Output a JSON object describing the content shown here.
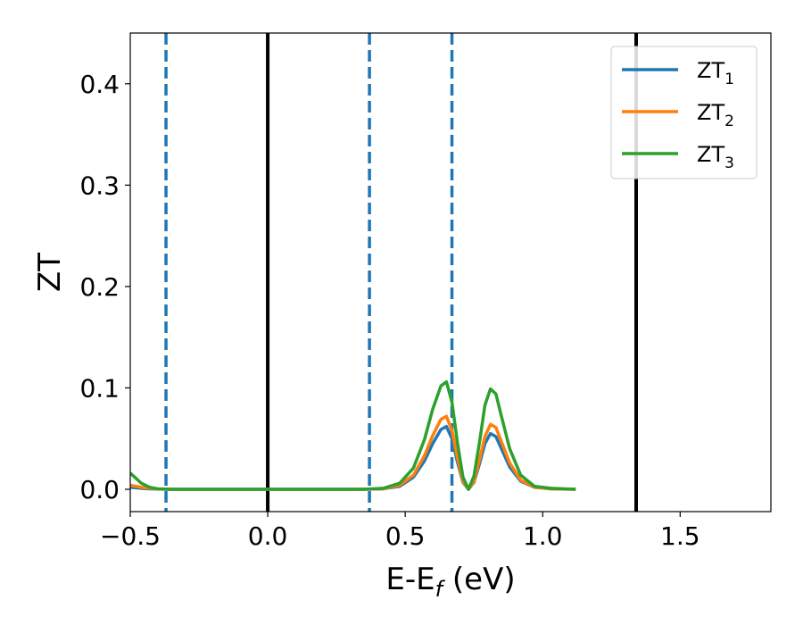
{
  "chart_data": {
    "type": "line",
    "title": "",
    "xlabel": "E-E",
    "xlabel_sub": "f",
    "xlabel_unit": " (eV)",
    "ylabel": "ZT",
    "xlim": [
      -0.5,
      1.83
    ],
    "ylim": [
      -0.022,
      0.45
    ],
    "xticks": [
      -0.5,
      0.0,
      0.5,
      1.0,
      1.5
    ],
    "xtick_labels": [
      "−0.5",
      "0.0",
      "0.5",
      "1.0",
      "1.5"
    ],
    "yticks": [
      0.0,
      0.1,
      0.2,
      0.3,
      0.4
    ],
    "ytick_labels": [
      "0.0",
      "0.1",
      "0.2",
      "0.3",
      "0.4"
    ],
    "grid": false,
    "legend_position": "top-right",
    "vlines": [
      {
        "x": -0.37,
        "style": "dashed",
        "color": "#1f77b4"
      },
      {
        "x": 0.0,
        "style": "solid",
        "color": "#000000"
      },
      {
        "x": 0.37,
        "style": "dashed",
        "color": "#1f77b4"
      },
      {
        "x": 0.67,
        "style": "dashed",
        "color": "#1f77b4"
      },
      {
        "x": 1.34,
        "style": "solid",
        "color": "#000000"
      }
    ],
    "series": [
      {
        "name": "ZT",
        "sub": "1",
        "color": "#1f77b4",
        "x": [
          -0.5,
          -0.46,
          -0.43,
          -0.4,
          -0.35,
          -0.2,
          0.0,
          0.2,
          0.35,
          0.42,
          0.48,
          0.53,
          0.57,
          0.6,
          0.63,
          0.65,
          0.67,
          0.69,
          0.71,
          0.73,
          0.75,
          0.77,
          0.79,
          0.81,
          0.83,
          0.85,
          0.88,
          0.92,
          0.97,
          1.03,
          1.12
        ],
        "y": [
          0.002,
          0.001,
          0.0005,
          0.0002,
          0.0,
          0.0,
          0.0,
          0.0,
          0.0,
          0.0005,
          0.003,
          0.012,
          0.028,
          0.045,
          0.059,
          0.062,
          0.05,
          0.027,
          0.007,
          0.0,
          0.007,
          0.025,
          0.045,
          0.055,
          0.052,
          0.04,
          0.022,
          0.008,
          0.002,
          0.0005,
          0.0
        ]
      },
      {
        "name": "ZT",
        "sub": "2",
        "color": "#ff7f0e",
        "x": [
          -0.5,
          -0.46,
          -0.43,
          -0.4,
          -0.35,
          -0.2,
          0.0,
          0.2,
          0.35,
          0.42,
          0.48,
          0.53,
          0.57,
          0.6,
          0.63,
          0.65,
          0.67,
          0.69,
          0.71,
          0.73,
          0.75,
          0.77,
          0.79,
          0.81,
          0.83,
          0.85,
          0.88,
          0.92,
          0.97,
          1.03,
          1.12
        ],
        "y": [
          0.004,
          0.002,
          0.001,
          0.0003,
          0.0,
          0.0,
          0.0,
          0.0,
          0.0,
          0.0006,
          0.004,
          0.014,
          0.033,
          0.053,
          0.069,
          0.072,
          0.058,
          0.031,
          0.008,
          0.0,
          0.008,
          0.029,
          0.052,
          0.064,
          0.061,
          0.047,
          0.026,
          0.009,
          0.002,
          0.0005,
          0.0
        ]
      },
      {
        "name": "ZT",
        "sub": "3",
        "color": "#2ca02c",
        "x": [
          -0.5,
          -0.46,
          -0.43,
          -0.4,
          -0.35,
          -0.2,
          0.0,
          0.2,
          0.35,
          0.42,
          0.48,
          0.53,
          0.57,
          0.6,
          0.63,
          0.65,
          0.67,
          0.69,
          0.71,
          0.73,
          0.75,
          0.77,
          0.79,
          0.81,
          0.83,
          0.85,
          0.88,
          0.92,
          0.97,
          1.03,
          1.12
        ],
        "y": [
          0.016,
          0.006,
          0.002,
          0.0005,
          0.0,
          0.0,
          0.0,
          0.0,
          0.0,
          0.001,
          0.006,
          0.021,
          0.049,
          0.079,
          0.102,
          0.106,
          0.086,
          0.046,
          0.012,
          0.0,
          0.013,
          0.046,
          0.083,
          0.099,
          0.094,
          0.072,
          0.04,
          0.014,
          0.003,
          0.001,
          0.0
        ]
      }
    ]
  }
}
